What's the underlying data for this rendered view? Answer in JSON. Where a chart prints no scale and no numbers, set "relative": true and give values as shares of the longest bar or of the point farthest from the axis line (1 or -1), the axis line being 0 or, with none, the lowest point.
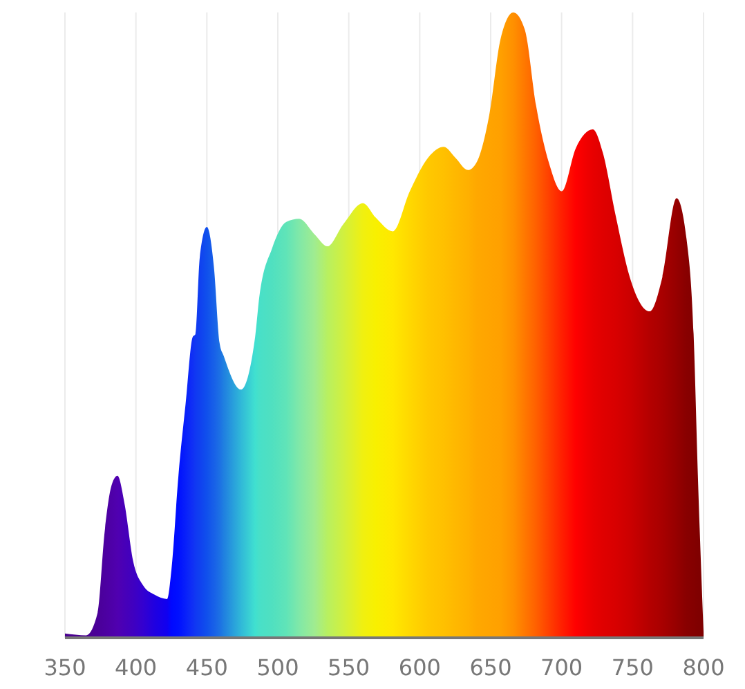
{
  "chart_data": {
    "type": "area",
    "relative": true,
    "xlim": [
      350,
      800
    ],
    "xticks": [
      350,
      400,
      450,
      500,
      550,
      600,
      650,
      700,
      750,
      800
    ],
    "grid": "x",
    "x": [
      350,
      365,
      373,
      378,
      383,
      387,
      392,
      398,
      405,
      413,
      422,
      425,
      430,
      435,
      440,
      442,
      445,
      450,
      455,
      459,
      462,
      474,
      484,
      487,
      496,
      506,
      515,
      526,
      535,
      546,
      560,
      569,
      581,
      593,
      606,
      617,
      625,
      634,
      640,
      649,
      657,
      666,
      674,
      682,
      691,
      700,
      710,
      722,
      729,
      738,
      748,
      762,
      771,
      781,
      788,
      793,
      796,
      800
    ],
    "values": [
      0.007,
      0.004,
      0.04,
      0.17,
      0.245,
      0.259,
      0.214,
      0.123,
      0.084,
      0.069,
      0.062,
      0.108,
      0.26,
      0.374,
      0.481,
      0.486,
      0.608,
      0.657,
      0.592,
      0.471,
      0.45,
      0.397,
      0.481,
      0.546,
      0.623,
      0.665,
      0.67,
      0.645,
      0.626,
      0.661,
      0.695,
      0.672,
      0.65,
      0.714,
      0.768,
      0.785,
      0.768,
      0.748,
      0.76,
      0.836,
      0.958,
      1,
      0.973,
      0.851,
      0.76,
      0.714,
      0.783,
      0.813,
      0.776,
      0.676,
      0.577,
      0.522,
      0.577,
      0.703,
      0.638,
      0.486,
      0.26,
      0.009
    ],
    "colors": [
      "#4a0090",
      "#4a0090",
      "#4a0098",
      "#4c00a0",
      "#4e00a8",
      "#5000b0",
      "#4800b8",
      "#4000c0",
      "#3400d0",
      "#2000e0",
      "#1000f0",
      "#0008ff",
      "#0010ff",
      "#0820fa",
      "#1030f5",
      "#1038f2",
      "#1040f0",
      "#1050ec",
      "#1860e8",
      "#1c70e4",
      "#2080e0",
      "#30b8d8",
      "#40e0d0",
      "#48e0c8",
      "#50e0c0",
      "#60e4b8",
      "#80e8a8",
      "#a0ec90",
      "#b8f060",
      "#d0f040",
      "#f0f010",
      "#f8f000",
      "#ffe800",
      "#ffd800",
      "#ffc800",
      "#ffc000",
      "#ffb800",
      "#ffb000",
      "#ffa800",
      "#ffa400",
      "#ffa000",
      "#ff9000",
      "#ff7800",
      "#ff6000",
      "#ff4000",
      "#ff2000",
      "#ff0000",
      "#e80000",
      "#e00000",
      "#d80000",
      "#cc0000",
      "#b40000",
      "#a80000",
      "#960000",
      "#880000",
      "#840000",
      "#800000",
      "#800000"
    ]
  }
}
